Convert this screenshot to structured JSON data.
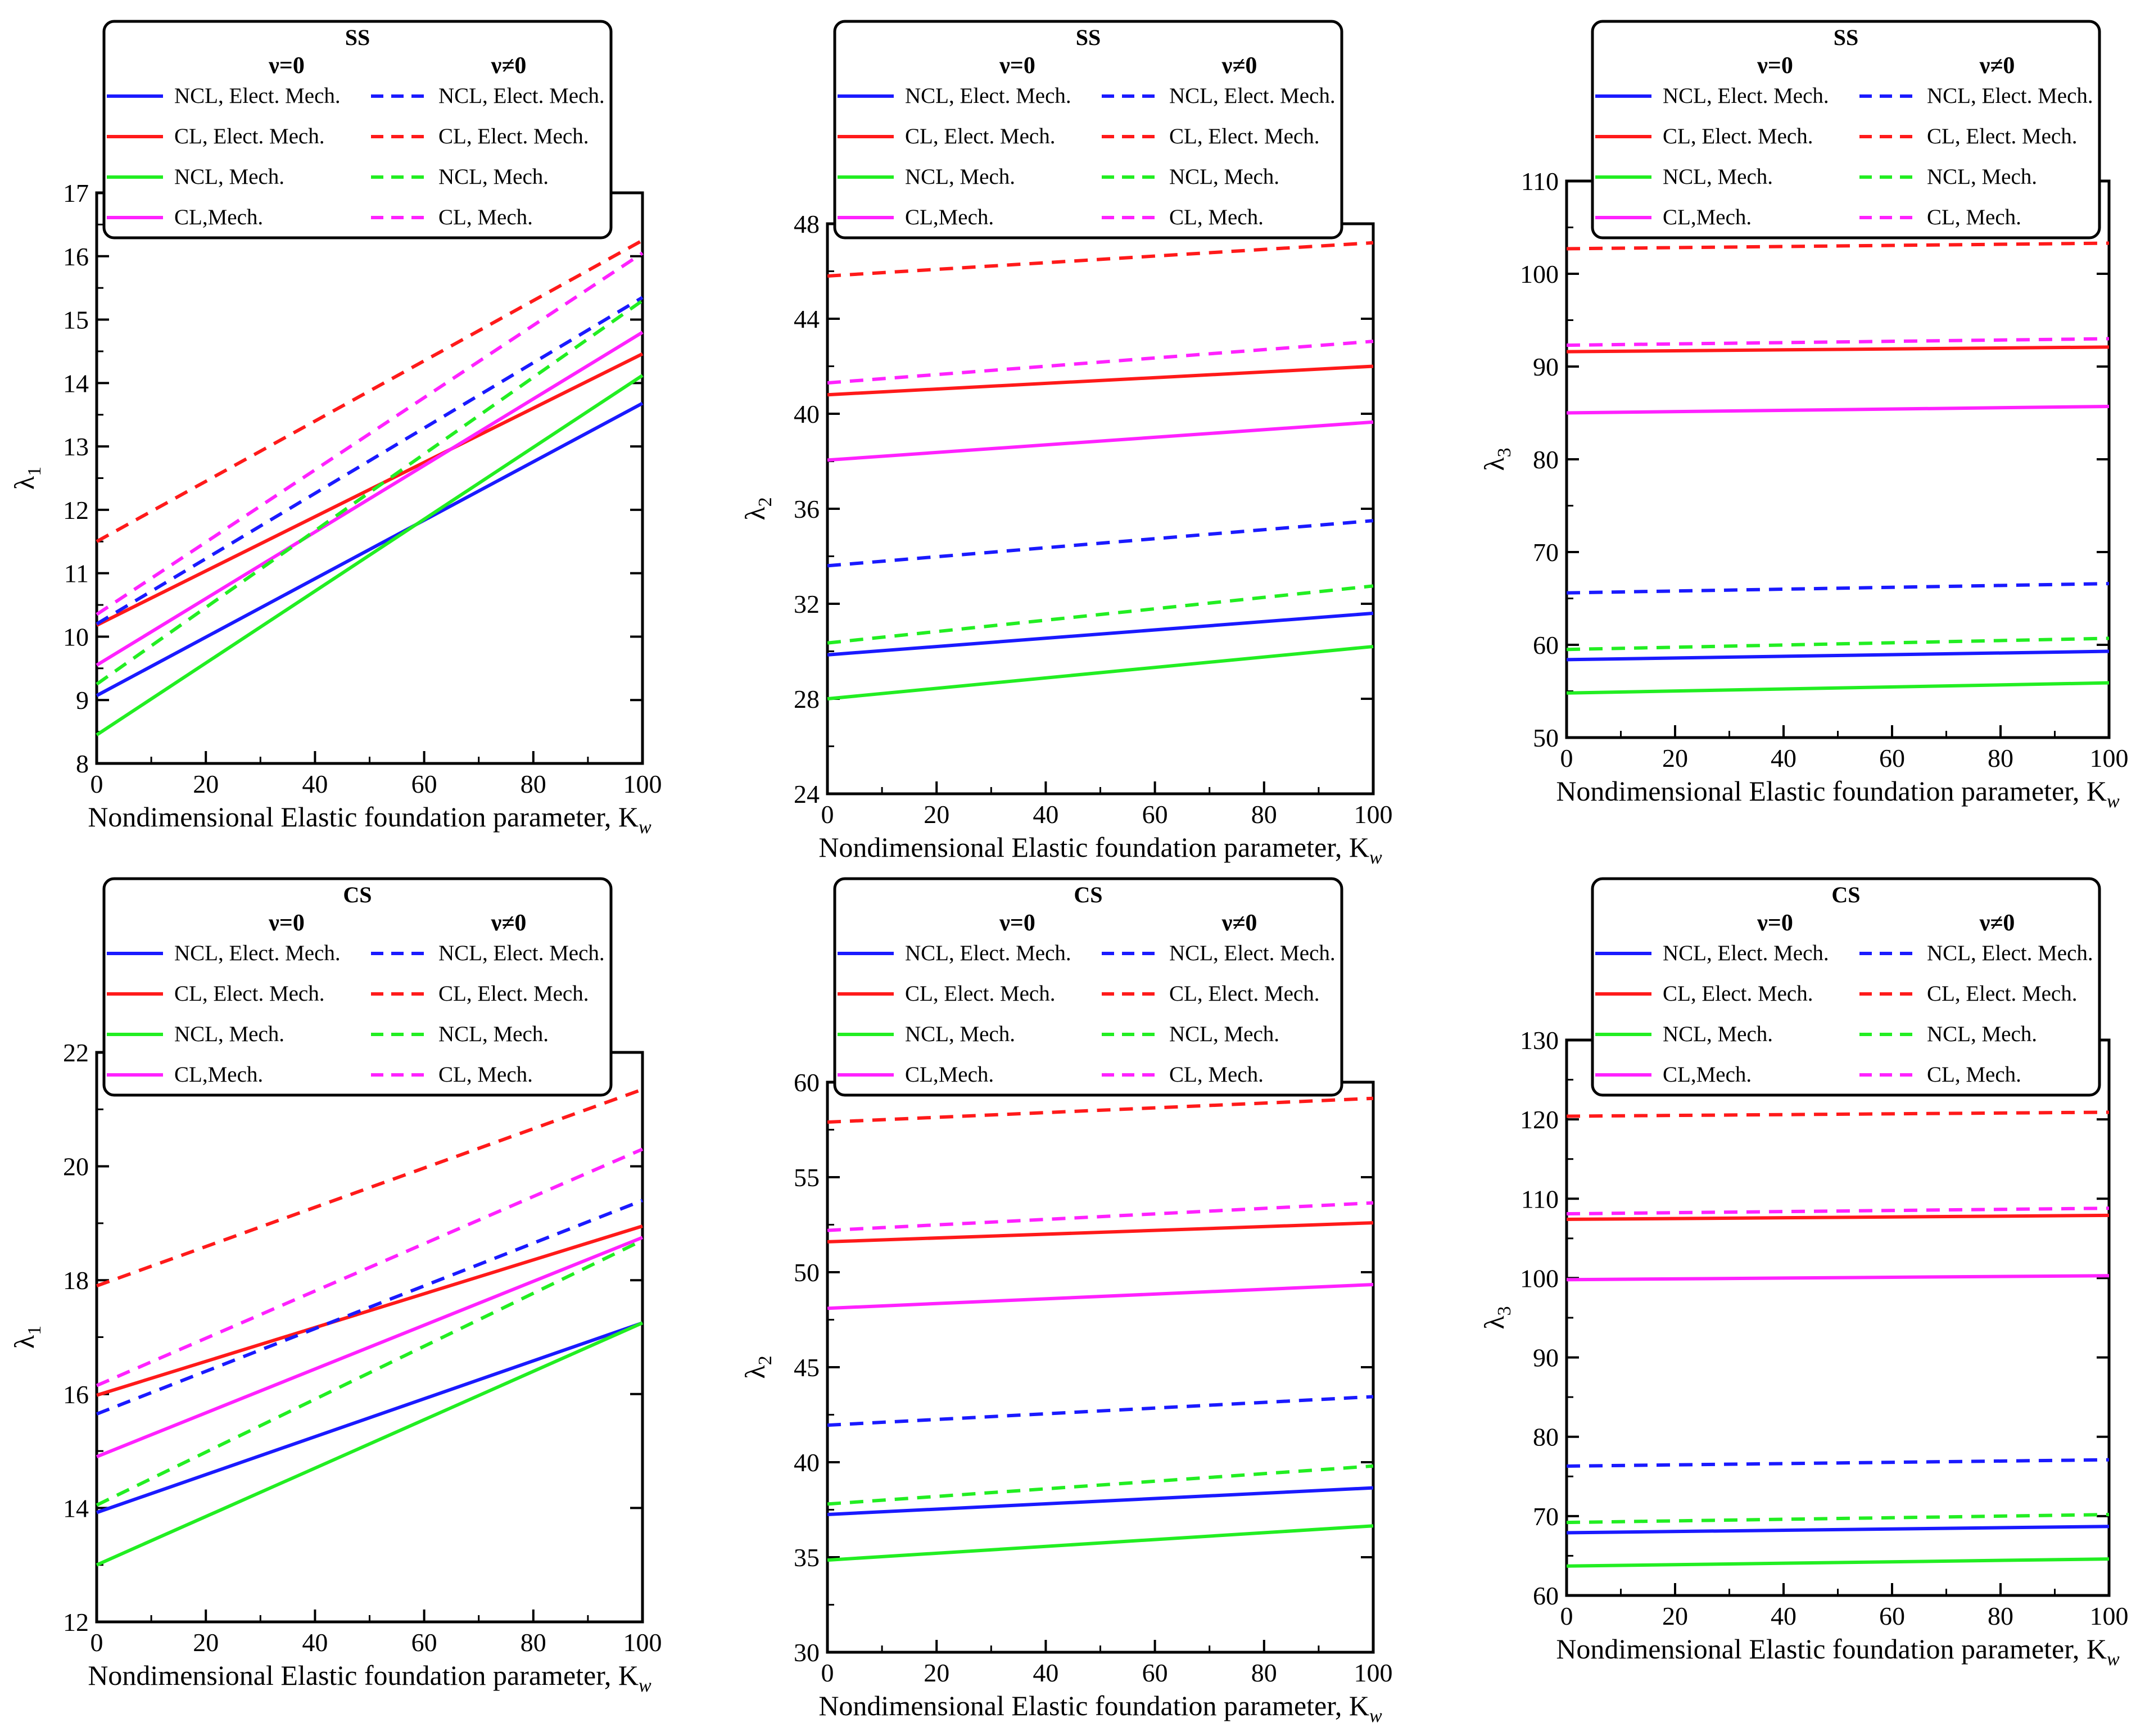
{
  "colors": {
    "NCL_EM": "#1a1aff",
    "CL_EM": "#ff1a1a",
    "NCL_M": "#22ee22",
    "CL_M": "#ff22ff"
  },
  "chart_data": [
    {
      "type": "line",
      "legend_title": "SS",
      "legend_headers": [
        "ν=0",
        "ν≠0"
      ],
      "xlabel": "Nondimensional Elastic foundation parameter, K",
      "xlabel_sub": "w",
      "ylabel": "λ",
      "ylabel_sub": "1",
      "xlim": [
        0,
        100
      ],
      "ylim": [
        8,
        17
      ],
      "xticks": [
        0,
        20,
        40,
        60,
        80,
        100
      ],
      "yticks": [
        8,
        9,
        10,
        11,
        12,
        13,
        14,
        15,
        16,
        17
      ],
      "series": [
        {
          "name": "NCL, Elect. Mech.",
          "color_key": "NCL_EM",
          "dashed": false,
          "x": [
            0,
            100
          ],
          "values": [
            9.07,
            13.68
          ]
        },
        {
          "name": "CL, Elect. Mech.",
          "color_key": "CL_EM",
          "dashed": false,
          "x": [
            0,
            100
          ],
          "values": [
            10.18,
            14.46
          ]
        },
        {
          "name": "NCL, Mech.",
          "color_key": "NCL_M",
          "dashed": false,
          "x": [
            0,
            100
          ],
          "values": [
            8.45,
            14.12
          ]
        },
        {
          "name": "CL,Mech.",
          "color_key": "CL_M",
          "dashed": false,
          "x": [
            0,
            100
          ],
          "values": [
            9.55,
            14.8
          ]
        },
        {
          "name": "NCL, Elect. Mech.",
          "color_key": "NCL_EM",
          "dashed": true,
          "x": [
            0,
            100
          ],
          "values": [
            10.2,
            15.35
          ]
        },
        {
          "name": "CL, Elect. Mech.",
          "color_key": "CL_EM",
          "dashed": true,
          "x": [
            0,
            100
          ],
          "values": [
            11.5,
            16.25
          ]
        },
        {
          "name": "NCL, Mech.",
          "color_key": "NCL_M",
          "dashed": true,
          "x": [
            0,
            100
          ],
          "values": [
            9.25,
            15.3
          ]
        },
        {
          "name": "CL,  Mech.",
          "color_key": "CL_M",
          "dashed": true,
          "x": [
            0,
            100
          ],
          "values": [
            10.35,
            16.05
          ]
        }
      ]
    },
    {
      "type": "line",
      "legend_title": "SS",
      "legend_headers": [
        "ν=0",
        "ν≠0"
      ],
      "xlabel": "Nondimensional Elastic foundation parameter, K",
      "xlabel_sub": "w",
      "ylabel": "λ",
      "ylabel_sub": "2",
      "xlim": [
        0,
        100
      ],
      "ylim": [
        24,
        48
      ],
      "xticks": [
        0,
        20,
        40,
        60,
        80,
        100
      ],
      "yticks": [
        24,
        28,
        32,
        36,
        40,
        44,
        48
      ],
      "series": [
        {
          "name": "NCL, Elect. Mech.",
          "color_key": "NCL_EM",
          "dashed": false,
          "x": [
            0,
            100
          ],
          "values": [
            29.85,
            31.6
          ]
        },
        {
          "name": "CL, Elect. Mech.",
          "color_key": "CL_EM",
          "dashed": false,
          "x": [
            0,
            100
          ],
          "values": [
            40.8,
            42.0
          ]
        },
        {
          "name": "NCL, Mech.",
          "color_key": "NCL_M",
          "dashed": false,
          "x": [
            0,
            100
          ],
          "values": [
            28.0,
            30.2
          ]
        },
        {
          "name": "CL,Mech.",
          "color_key": "CL_M",
          "dashed": false,
          "x": [
            0,
            100
          ],
          "values": [
            38.05,
            39.65
          ]
        },
        {
          "name": "NCL, Elect. Mech.",
          "color_key": "NCL_EM",
          "dashed": true,
          "x": [
            0,
            100
          ],
          "values": [
            33.6,
            35.5
          ]
        },
        {
          "name": "CL, Elect. Mech.",
          "color_key": "CL_EM",
          "dashed": true,
          "x": [
            0,
            100
          ],
          "values": [
            45.8,
            47.2
          ]
        },
        {
          "name": "NCL, Mech.",
          "color_key": "NCL_M",
          "dashed": true,
          "x": [
            0,
            100
          ],
          "values": [
            30.35,
            32.75
          ]
        },
        {
          "name": "CL,  Mech.",
          "color_key": "CL_M",
          "dashed": true,
          "x": [
            0,
            100
          ],
          "values": [
            41.3,
            43.05
          ]
        }
      ]
    },
    {
      "type": "line",
      "legend_title": "SS",
      "legend_headers": [
        "ν=0",
        "ν≠0"
      ],
      "xlabel": "Nondimensional Elastic foundation parameter, K",
      "xlabel_sub": "w",
      "ylabel": "λ",
      "ylabel_sub": "3",
      "xlim": [
        0,
        100
      ],
      "ylim": [
        50,
        110
      ],
      "xticks": [
        0,
        20,
        40,
        60,
        80,
        100
      ],
      "yticks": [
        50,
        60,
        70,
        80,
        90,
        100,
        110
      ],
      "series": [
        {
          "name": "NCL, Elect. Mech.",
          "color_key": "NCL_EM",
          "dashed": false,
          "x": [
            0,
            100
          ],
          "values": [
            58.4,
            59.3
          ]
        },
        {
          "name": "CL, Elect. Mech.",
          "color_key": "CL_EM",
          "dashed": false,
          "x": [
            0,
            100
          ],
          "values": [
            91.6,
            92.1
          ]
        },
        {
          "name": "NCL, Mech.",
          "color_key": "NCL_M",
          "dashed": false,
          "x": [
            0,
            100
          ],
          "values": [
            54.8,
            55.9
          ]
        },
        {
          "name": "CL,Mech.",
          "color_key": "CL_M",
          "dashed": false,
          "x": [
            0,
            100
          ],
          "values": [
            85.0,
            85.7
          ]
        },
        {
          "name": "NCL, Elect. Mech.",
          "color_key": "NCL_EM",
          "dashed": true,
          "x": [
            0,
            100
          ],
          "values": [
            65.6,
            66.6
          ]
        },
        {
          "name": "CL, Elect. Mech.",
          "color_key": "CL_EM",
          "dashed": true,
          "x": [
            0,
            100
          ],
          "values": [
            102.7,
            103.3
          ]
        },
        {
          "name": "NCL, Mech.",
          "color_key": "NCL_M",
          "dashed": true,
          "x": [
            0,
            100
          ],
          "values": [
            59.5,
            60.7
          ]
        },
        {
          "name": "CL,  Mech.",
          "color_key": "CL_M",
          "dashed": true,
          "x": [
            0,
            100
          ],
          "values": [
            92.3,
            93.0
          ]
        }
      ]
    },
    {
      "type": "line",
      "legend_title": "CS",
      "legend_headers": [
        "ν=0",
        "ν≠0"
      ],
      "xlabel": "Nondimensional Elastic foundation parameter, K",
      "xlabel_sub": "w",
      "ylabel": "λ",
      "ylabel_sub": "1",
      "xlim": [
        0,
        100
      ],
      "ylim": [
        12,
        22
      ],
      "xticks": [
        0,
        20,
        40,
        60,
        80,
        100
      ],
      "yticks": [
        12,
        14,
        16,
        18,
        20,
        22
      ],
      "series": [
        {
          "name": "NCL, Elect. Mech.",
          "color_key": "NCL_EM",
          "dashed": false,
          "x": [
            0,
            100
          ],
          "values": [
            13.92,
            17.25
          ]
        },
        {
          "name": "CL, Elect. Mech.",
          "color_key": "CL_EM",
          "dashed": false,
          "x": [
            0,
            100
          ],
          "values": [
            15.98,
            18.95
          ]
        },
        {
          "name": "NCL, Mech.",
          "color_key": "NCL_M",
          "dashed": false,
          "x": [
            0,
            100
          ],
          "values": [
            13.0,
            17.25
          ]
        },
        {
          "name": "CL,Mech.",
          "color_key": "CL_M",
          "dashed": false,
          "x": [
            0,
            100
          ],
          "values": [
            14.9,
            18.75
          ]
        },
        {
          "name": "NCL, Elect. Mech.",
          "color_key": "NCL_EM",
          "dashed": true,
          "x": [
            0,
            100
          ],
          "values": [
            15.65,
            19.4
          ]
        },
        {
          "name": "CL, Elect. Mech.",
          "color_key": "CL_EM",
          "dashed": true,
          "x": [
            0,
            100
          ],
          "values": [
            17.9,
            21.35
          ]
        },
        {
          "name": "NCL, Mech.",
          "color_key": "NCL_M",
          "dashed": true,
          "x": [
            0,
            100
          ],
          "values": [
            14.05,
            18.7
          ]
        },
        {
          "name": "CL,  Mech.",
          "color_key": "CL_M",
          "dashed": true,
          "x": [
            0,
            100
          ],
          "values": [
            16.15,
            20.3
          ]
        }
      ]
    },
    {
      "type": "line",
      "legend_title": "CS",
      "legend_headers": [
        "ν=0",
        "ν≠0"
      ],
      "xlabel": "Nondimensional Elastic foundation parameter, K",
      "xlabel_sub": "w",
      "ylabel": "λ",
      "ylabel_sub": "2",
      "xlim": [
        0,
        100
      ],
      "ylim": [
        30,
        60
      ],
      "xticks": [
        0,
        20,
        40,
        60,
        80,
        100
      ],
      "yticks": [
        30,
        35,
        40,
        45,
        50,
        55,
        60
      ],
      "series": [
        {
          "name": "NCL, Elect. Mech.",
          "color_key": "NCL_EM",
          "dashed": false,
          "x": [
            0,
            100
          ],
          "values": [
            37.25,
            38.65
          ]
        },
        {
          "name": "CL, Elect. Mech.",
          "color_key": "CL_EM",
          "dashed": false,
          "x": [
            0,
            100
          ],
          "values": [
            51.6,
            52.6
          ]
        },
        {
          "name": "NCL, Mech.",
          "color_key": "NCL_M",
          "dashed": false,
          "x": [
            0,
            100
          ],
          "values": [
            34.85,
            36.65
          ]
        },
        {
          "name": "CL,Mech.",
          "color_key": "CL_M",
          "dashed": false,
          "x": [
            0,
            100
          ],
          "values": [
            48.1,
            49.35
          ]
        },
        {
          "name": "NCL, Elect. Mech.",
          "color_key": "NCL_EM",
          "dashed": true,
          "x": [
            0,
            100
          ],
          "values": [
            41.95,
            43.45
          ]
        },
        {
          "name": "CL, Elect. Mech.",
          "color_key": "CL_EM",
          "dashed": true,
          "x": [
            0,
            100
          ],
          "values": [
            57.9,
            59.15
          ]
        },
        {
          "name": "NCL, Mech.",
          "color_key": "NCL_M",
          "dashed": true,
          "x": [
            0,
            100
          ],
          "values": [
            37.8,
            39.8
          ]
        },
        {
          "name": "CL,  Mech.",
          "color_key": "CL_M",
          "dashed": true,
          "x": [
            0,
            100
          ],
          "values": [
            52.2,
            53.65
          ]
        }
      ]
    },
    {
      "type": "line",
      "legend_title": "CS",
      "legend_headers": [
        "ν=0",
        "ν≠0"
      ],
      "xlabel": "Nondimensional Elastic foundation parameter, K",
      "xlabel_sub": "w",
      "ylabel": "λ",
      "ylabel_sub": "3",
      "xlim": [
        0,
        100
      ],
      "ylim": [
        60,
        130
      ],
      "xticks": [
        0,
        20,
        40,
        60,
        80,
        100
      ],
      "yticks": [
        60,
        70,
        80,
        90,
        100,
        110,
        120,
        130
      ],
      "series": [
        {
          "name": "NCL, Elect. Mech.",
          "color_key": "NCL_EM",
          "dashed": false,
          "x": [
            0,
            100
          ],
          "values": [
            67.9,
            68.7
          ]
        },
        {
          "name": "CL, Elect. Mech.",
          "color_key": "CL_EM",
          "dashed": false,
          "x": [
            0,
            100
          ],
          "values": [
            107.4,
            107.9
          ]
        },
        {
          "name": "NCL, Mech.",
          "color_key": "NCL_M",
          "dashed": false,
          "x": [
            0,
            100
          ],
          "values": [
            63.7,
            64.6
          ]
        },
        {
          "name": "CL,Mech.",
          "color_key": "CL_M",
          "dashed": false,
          "x": [
            0,
            100
          ],
          "values": [
            99.8,
            100.3
          ]
        },
        {
          "name": "NCL, Elect. Mech.",
          "color_key": "NCL_EM",
          "dashed": true,
          "x": [
            0,
            100
          ],
          "values": [
            76.3,
            77.1
          ]
        },
        {
          "name": "CL, Elect. Mech.",
          "color_key": "CL_EM",
          "dashed": true,
          "x": [
            0,
            100
          ],
          "values": [
            120.4,
            120.9
          ]
        },
        {
          "name": "NCL, Mech.",
          "color_key": "NCL_M",
          "dashed": true,
          "x": [
            0,
            100
          ],
          "values": [
            69.2,
            70.2
          ]
        },
        {
          "name": "CL,  Mech.",
          "color_key": "CL_M",
          "dashed": true,
          "x": [
            0,
            100
          ],
          "values": [
            108.1,
            108.8
          ]
        }
      ]
    }
  ]
}
